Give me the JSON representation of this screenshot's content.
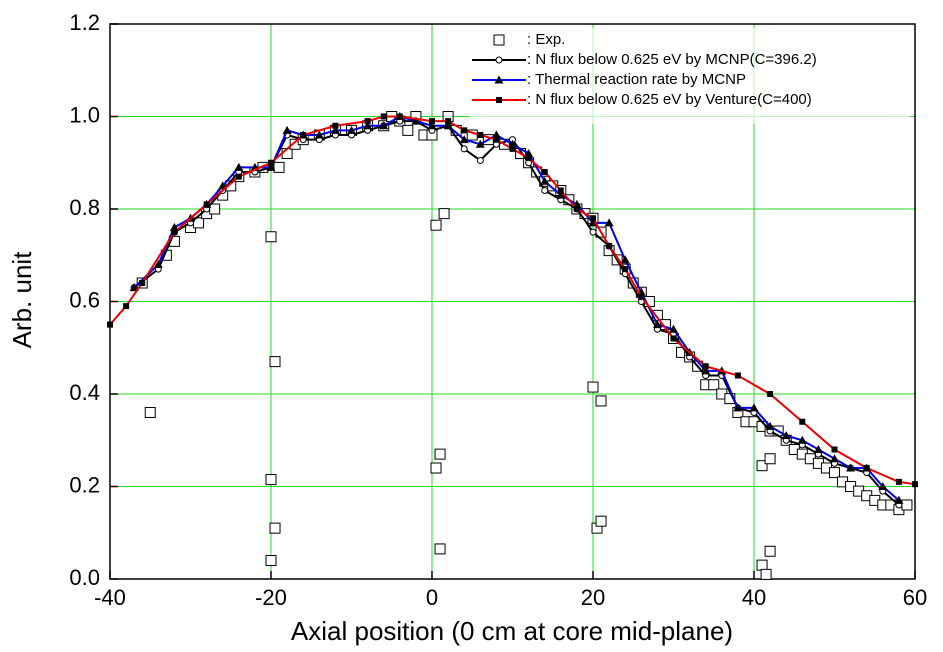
{
  "chart_data": {
    "type": "line",
    "x_label": "Axial position (0 cm at core mid-plane)",
    "y_label": "Arb. unit",
    "xlim": [
      -40,
      60
    ],
    "xticks": [
      -40,
      -20,
      0,
      20,
      40,
      60
    ],
    "ylim": [
      0,
      1.2
    ],
    "yticks": [
      {
        "value": 0,
        "label": "0.0"
      },
      0.2,
      0.4,
      0.6,
      0.8,
      {
        "value": 1,
        "label": "1.0"
      },
      1.2
    ],
    "grid": true,
    "grid_color": "#22dd22",
    "legend": "upper right",
    "series": [
      {
        "name": ": Exp.",
        "color": "#000000",
        "line": false,
        "marker": "square",
        "x": [
          -35,
          -20,
          -19.5,
          -20,
          -19.5,
          -20,
          0.5,
          1.5,
          0.5,
          1,
          1,
          20,
          21,
          20.5,
          21,
          41,
          42,
          41,
          41.5,
          42,
          -36,
          -33,
          -32,
          -30,
          -29,
          -28,
          -27,
          -26,
          -25,
          -24,
          -22,
          -21,
          -19,
          -18,
          -17,
          -16,
          -14,
          -12,
          -10,
          -8,
          -6,
          -5,
          -4,
          -3,
          -2,
          -1,
          0,
          2,
          3,
          5,
          7,
          9,
          11,
          12,
          13,
          14,
          15,
          16,
          17,
          18,
          19,
          20,
          21,
          22,
          23,
          24,
          25,
          26,
          27,
          28,
          29,
          30,
          31,
          32,
          33,
          34,
          35,
          36,
          37,
          38,
          39,
          40,
          41,
          42,
          43,
          44,
          45,
          46,
          47,
          48,
          49,
          50,
          51,
          52,
          53,
          54,
          55,
          56,
          57,
          58,
          59
        ],
        "values": [
          0.36,
          0.74,
          0.47,
          0.215,
          0.11,
          0.04,
          0.765,
          0.79,
          0.24,
          0.27,
          0.065,
          0.415,
          0.385,
          0.11,
          0.125,
          0.245,
          0.26,
          0.03,
          0.01,
          0.06,
          0.64,
          0.7,
          0.73,
          0.76,
          0.77,
          0.79,
          0.8,
          0.83,
          0.85,
          0.87,
          0.88,
          0.89,
          0.89,
          0.92,
          0.94,
          0.95,
          0.96,
          0.97,
          0.97,
          0.98,
          0.98,
          1,
          0.99,
          0.97,
          1,
          0.96,
          0.96,
          1,
          0.97,
          0.96,
          0.95,
          0.94,
          0.92,
          0.9,
          0.88,
          0.86,
          0.85,
          0.84,
          0.82,
          0.8,
          0.79,
          0.78,
          0.75,
          0.71,
          0.69,
          0.67,
          0.64,
          0.62,
          0.6,
          0.57,
          0.55,
          0.52,
          0.49,
          0.48,
          0.46,
          0.42,
          0.42,
          0.4,
          0.39,
          0.36,
          0.34,
          0.34,
          0.33,
          0.32,
          0.32,
          0.3,
          0.28,
          0.27,
          0.26,
          0.25,
          0.24,
          0.23,
          0.21,
          0.2,
          0.19,
          0.18,
          0.17,
          0.16,
          0.16,
          0.15,
          0.16
        ]
      },
      {
        "name": ": N flux below 0.625 eV by MCNP(C=396.2)",
        "color": "#000000",
        "line": true,
        "marker": "circle",
        "x": [
          -37,
          -34,
          -32,
          -30,
          -28,
          -26,
          -24,
          -22,
          -20,
          -18,
          -16,
          -14,
          -12,
          -10,
          -8,
          -6,
          -4,
          -2,
          0,
          2,
          4,
          6,
          8,
          10,
          12,
          14,
          16,
          18,
          20,
          22,
          24,
          26,
          28,
          30,
          32,
          34,
          36,
          38,
          40,
          42,
          44,
          46,
          48,
          50,
          52,
          54,
          56,
          58
        ],
        "values": [
          0.63,
          0.67,
          0.75,
          0.77,
          0.8,
          0.84,
          0.88,
          0.88,
          0.89,
          0.96,
          0.95,
          0.95,
          0.96,
          0.96,
          0.97,
          0.98,
          0.99,
          0.99,
          0.97,
          0.98,
          0.93,
          0.905,
          0.94,
          0.95,
          0.9,
          0.84,
          0.82,
          0.8,
          0.75,
          0.72,
          0.66,
          0.6,
          0.54,
          0.53,
          0.48,
          0.44,
          0.44,
          0.37,
          0.36,
          0.32,
          0.3,
          0.29,
          0.27,
          0.25,
          0.24,
          0.23,
          0.19,
          0.16
        ]
      },
      {
        "name": ": Thermal reaction rate by MCNP",
        "color": "#0000ee",
        "line": true,
        "marker": "triangle",
        "x": [
          -37,
          -34,
          -32,
          -30,
          -28,
          -26,
          -24,
          -22,
          -20,
          -18,
          -16,
          -14,
          -12,
          -10,
          -8,
          -6,
          -4,
          -2,
          0,
          2,
          4,
          6,
          8,
          10,
          12,
          14,
          16,
          18,
          20,
          22,
          24,
          26,
          28,
          30,
          32,
          34,
          36,
          38,
          40,
          42,
          44,
          46,
          48,
          50,
          52,
          54,
          56,
          58
        ],
        "values": [
          0.63,
          0.68,
          0.76,
          0.78,
          0.81,
          0.85,
          0.89,
          0.89,
          0.89,
          0.97,
          0.96,
          0.96,
          0.97,
          0.97,
          0.98,
          0.98,
          1,
          0.99,
          0.98,
          0.98,
          0.95,
          0.94,
          0.96,
          0.94,
          0.92,
          0.86,
          0.83,
          0.81,
          0.77,
          0.77,
          0.69,
          0.62,
          0.55,
          0.54,
          0.49,
          0.45,
          0.45,
          0.37,
          0.37,
          0.33,
          0.31,
          0.3,
          0.28,
          0.26,
          0.24,
          0.24,
          0.2,
          0.17
        ]
      },
      {
        "name": ": N flux below 0.625 eV by Venture(C=400)",
        "color": "#ee0000",
        "line": true,
        "marker": "filled-square",
        "x": [
          -40,
          -38,
          -36,
          -32,
          -28,
          -24,
          -20,
          -16,
          -12,
          -8,
          -6,
          -4,
          0,
          2,
          4,
          6,
          8,
          10,
          12,
          14,
          16,
          18,
          20,
          22,
          24,
          26,
          30,
          34,
          38,
          42,
          46,
          50,
          54,
          58,
          60
        ],
        "values": [
          0.55,
          0.59,
          0.64,
          0.75,
          0.81,
          0.87,
          0.9,
          0.96,
          0.98,
          0.99,
          1,
          1,
          0.99,
          0.99,
          0.97,
          0.96,
          0.95,
          0.93,
          0.91,
          0.88,
          0.84,
          0.8,
          0.78,
          0.72,
          0.67,
          0.61,
          0.52,
          0.46,
          0.44,
          0.4,
          0.34,
          0.28,
          0.24,
          0.21,
          0.205
        ]
      }
    ]
  }
}
